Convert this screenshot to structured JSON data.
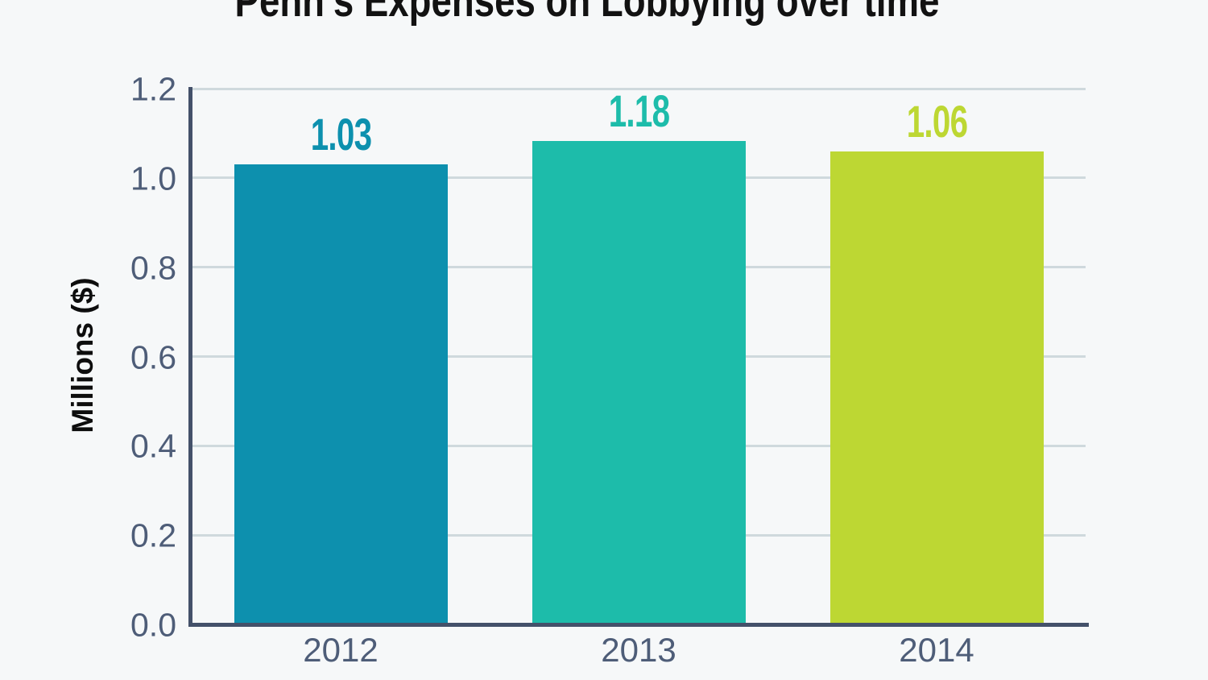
{
  "title": "Penn's Expenses on Lobbying over time",
  "chart_data": {
    "type": "bar",
    "title": "Penn's Expenses on Lobbying over time",
    "xlabel": "",
    "ylabel": "Millions ($)",
    "categories": [
      "2012",
      "2013",
      "2014"
    ],
    "values": [
      1.03,
      1.18,
      1.06
    ],
    "value_labels": [
      "1.03",
      "1.18",
      "1.06"
    ],
    "bar_colors": [
      "#0d90ae",
      "#1dbcaa",
      "#bdd733"
    ],
    "ylim": [
      0,
      1.2
    ],
    "yticks": [
      0.0,
      0.2,
      0.4,
      0.6,
      0.8,
      1.0,
      1.2
    ],
    "ytick_labels": [
      "0.0",
      "0.2",
      "0.4",
      "0.6",
      "0.8",
      "1.0",
      "1.2"
    ],
    "grid": true,
    "legend": false
  },
  "colors": {
    "background": "#f6f8f9",
    "axis": "#44516a",
    "grid": "#cfd9dd",
    "tick_label": "#4e5d78",
    "title_text": "#121212"
  }
}
